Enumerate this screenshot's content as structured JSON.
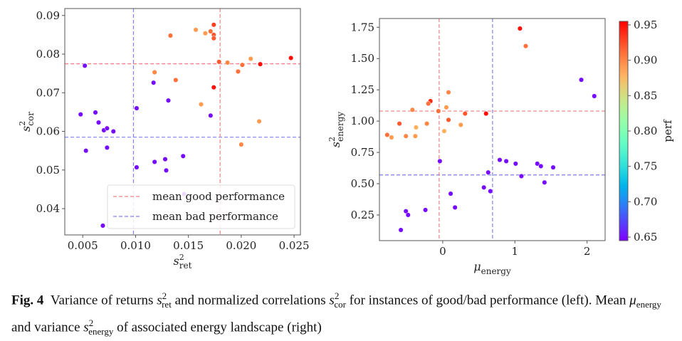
{
  "chart_data": [
    {
      "type": "scatter",
      "panel": "left",
      "xlabel": "s²ret",
      "xlabel_main": "s",
      "xlabel_sup": "2",
      "xlabel_sub": "ret",
      "ylabel_main": "s",
      "ylabel_sup": "2",
      "ylabel_sub": "cor",
      "xlim": [
        0.0033,
        0.0256
      ],
      "ylim": [
        0.0332,
        0.0918
      ],
      "xticks": [
        "0.005",
        "0.010",
        "0.015",
        "0.020",
        "0.025"
      ],
      "xtick_values": [
        0.005,
        0.01,
        0.015,
        0.02,
        0.025
      ],
      "yticks": [
        "0.04",
        "0.05",
        "0.06",
        "0.07",
        "0.08",
        "0.09"
      ],
      "ytick_values": [
        0.04,
        0.05,
        0.06,
        0.07,
        0.08,
        0.09
      ],
      "grid": false,
      "legend": {
        "placement": "lower-right",
        "entries": [
          {
            "label": "mean good performance",
            "color": "#f08080"
          },
          {
            "label": "mean bad performance",
            "color": "#8080f0"
          }
        ]
      },
      "mean_lines": {
        "good": {
          "x": 0.018,
          "y": 0.0775,
          "color": "#f08080"
        },
        "bad": {
          "x": 0.0098,
          "y": 0.0585,
          "color": "#8080f0"
        }
      },
      "points": [
        {
          "x": 0.0052,
          "y": 0.077,
          "perf": 0.65
        },
        {
          "x": 0.0048,
          "y": 0.0644,
          "perf": 0.65
        },
        {
          "x": 0.0062,
          "y": 0.0649,
          "perf": 0.65
        },
        {
          "x": 0.0065,
          "y": 0.0623,
          "perf": 0.65
        },
        {
          "x": 0.007,
          "y": 0.0603,
          "perf": 0.65
        },
        {
          "x": 0.0073,
          "y": 0.0608,
          "perf": 0.65
        },
        {
          "x": 0.0079,
          "y": 0.06,
          "perf": 0.65
        },
        {
          "x": 0.0053,
          "y": 0.055,
          "perf": 0.65
        },
        {
          "x": 0.0073,
          "y": 0.0558,
          "perf": 0.65
        },
        {
          "x": 0.0101,
          "y": 0.066,
          "perf": 0.65
        },
        {
          "x": 0.0117,
          "y": 0.0726,
          "perf": 0.65
        },
        {
          "x": 0.0131,
          "y": 0.068,
          "perf": 0.65
        },
        {
          "x": 0.0171,
          "y": 0.0641,
          "perf": 0.65
        },
        {
          "x": 0.0101,
          "y": 0.0507,
          "perf": 0.65
        },
        {
          "x": 0.0118,
          "y": 0.0521,
          "perf": 0.65
        },
        {
          "x": 0.0128,
          "y": 0.0528,
          "perf": 0.65
        },
        {
          "x": 0.0129,
          "y": 0.0499,
          "perf": 0.65
        },
        {
          "x": 0.0145,
          "y": 0.0536,
          "perf": 0.65
        },
        {
          "x": 0.0069,
          "y": 0.0356,
          "perf": 0.65
        },
        {
          "x": 0.0146,
          "y": 0.0438,
          "perf": 0.65
        },
        {
          "x": 0.0133,
          "y": 0.0848,
          "perf": 0.91
        },
        {
          "x": 0.0157,
          "y": 0.0863,
          "perf": 0.89
        },
        {
          "x": 0.0166,
          "y": 0.0854,
          "perf": 0.89
        },
        {
          "x": 0.0171,
          "y": 0.0859,
          "perf": 0.91
        },
        {
          "x": 0.0174,
          "y": 0.085,
          "perf": 0.92
        },
        {
          "x": 0.0174,
          "y": 0.0876,
          "perf": 0.93
        },
        {
          "x": 0.0174,
          "y": 0.0841,
          "perf": 0.92
        },
        {
          "x": 0.0118,
          "y": 0.0753,
          "perf": 0.9
        },
        {
          "x": 0.0138,
          "y": 0.0733,
          "perf": 0.91
        },
        {
          "x": 0.0174,
          "y": 0.0714,
          "perf": 0.95
        },
        {
          "x": 0.0162,
          "y": 0.067,
          "perf": 0.89
        },
        {
          "x": 0.0179,
          "y": 0.078,
          "perf": 0.92
        },
        {
          "x": 0.0187,
          "y": 0.0778,
          "perf": 0.9
        },
        {
          "x": 0.0197,
          "y": 0.0755,
          "perf": 0.91
        },
        {
          "x": 0.0201,
          "y": 0.0772,
          "perf": 0.91
        },
        {
          "x": 0.0209,
          "y": 0.0788,
          "perf": 0.89
        },
        {
          "x": 0.0218,
          "y": 0.0774,
          "perf": 0.95
        },
        {
          "x": 0.0247,
          "y": 0.079,
          "perf": 0.95
        },
        {
          "x": 0.0217,
          "y": 0.0626,
          "perf": 0.89
        },
        {
          "x": 0.02,
          "y": 0.0566,
          "perf": 0.9
        }
      ]
    },
    {
      "type": "scatter",
      "panel": "right",
      "xlabel_main": "μ",
      "xlabel_sub": "energy",
      "ylabel_main": "s",
      "ylabel_sup": "2",
      "ylabel_sub": "energy",
      "xlim": [
        -0.877,
        2.25
      ],
      "ylim": [
        0.045,
        1.82
      ],
      "xticks": [
        "0",
        "1",
        "2"
      ],
      "xtick_values": [
        0,
        1,
        2
      ],
      "yticks": [
        "0.25",
        "0.50",
        "0.75",
        "1.00",
        "1.25",
        "1.50",
        "1.75"
      ],
      "ytick_values": [
        0.25,
        0.5,
        0.75,
        1.0,
        1.25,
        1.5,
        1.75
      ],
      "grid": false,
      "mean_lines": {
        "good": {
          "x": -0.05,
          "y": 1.08,
          "color": "#f08080"
        },
        "bad": {
          "x": 0.69,
          "y": 0.57,
          "color": "#8080f0"
        }
      },
      "colorbar": {
        "label": "perf",
        "range": [
          0.645,
          0.955
        ],
        "ticks": [
          "0.65",
          "0.70",
          "0.75",
          "0.80",
          "0.85",
          "0.90",
          "0.95"
        ],
        "tick_values": [
          0.65,
          0.7,
          0.75,
          0.8,
          0.85,
          0.9,
          0.95
        ],
        "colormap": "rainbow"
      },
      "points": [
        {
          "x": 1.07,
          "y": 1.74,
          "perf": 0.95
        },
        {
          "x": 1.15,
          "y": 1.6,
          "perf": 0.91
        },
        {
          "x": 1.92,
          "y": 1.33,
          "perf": 0.65
        },
        {
          "x": 2.1,
          "y": 1.2,
          "perf": 0.65
        },
        {
          "x": 0.08,
          "y": 1.23,
          "perf": 0.9
        },
        {
          "x": -0.17,
          "y": 1.16,
          "perf": 0.94
        },
        {
          "x": -0.2,
          "y": 1.14,
          "perf": 0.91
        },
        {
          "x": -0.42,
          "y": 1.09,
          "perf": 0.9
        },
        {
          "x": -0.06,
          "y": 1.08,
          "perf": 0.91
        },
        {
          "x": 0.05,
          "y": 1.11,
          "perf": 0.89
        },
        {
          "x": 0.31,
          "y": 1.06,
          "perf": 0.92
        },
        {
          "x": 0.6,
          "y": 1.06,
          "perf": 0.95
        },
        {
          "x": 0.08,
          "y": 1.01,
          "perf": 0.92
        },
        {
          "x": -0.6,
          "y": 0.98,
          "perf": 0.92
        },
        {
          "x": -0.22,
          "y": 0.98,
          "perf": 0.9
        },
        {
          "x": -0.37,
          "y": 0.95,
          "perf": 0.88
        },
        {
          "x": 0.25,
          "y": 0.97,
          "perf": 0.89
        },
        {
          "x": 0.02,
          "y": 0.92,
          "perf": 0.88
        },
        {
          "x": -0.77,
          "y": 0.89,
          "perf": 0.91
        },
        {
          "x": -0.71,
          "y": 0.87,
          "perf": 0.89
        },
        {
          "x": -0.51,
          "y": 0.88,
          "perf": 0.9
        },
        {
          "x": -0.38,
          "y": 0.88,
          "perf": 0.89
        },
        {
          "x": -0.04,
          "y": 0.68,
          "perf": 0.65
        },
        {
          "x": 0.79,
          "y": 0.69,
          "perf": 0.65
        },
        {
          "x": 0.88,
          "y": 0.68,
          "perf": 0.65
        },
        {
          "x": 1.01,
          "y": 0.66,
          "perf": 0.65
        },
        {
          "x": 1.31,
          "y": 0.66,
          "perf": 0.65
        },
        {
          "x": 1.36,
          "y": 0.64,
          "perf": 0.65
        },
        {
          "x": 1.53,
          "y": 0.63,
          "perf": 0.65
        },
        {
          "x": 0.63,
          "y": 0.59,
          "perf": 0.65
        },
        {
          "x": 1.09,
          "y": 0.56,
          "perf": 0.65
        },
        {
          "x": 1.41,
          "y": 0.51,
          "perf": 0.65
        },
        {
          "x": 0.57,
          "y": 0.47,
          "perf": 0.65
        },
        {
          "x": 0.66,
          "y": 0.44,
          "perf": 0.65
        },
        {
          "x": 0.11,
          "y": 0.42,
          "perf": 0.65
        },
        {
          "x": 0.17,
          "y": 0.31,
          "perf": 0.65
        },
        {
          "x": -0.24,
          "y": 0.29,
          "perf": 0.65
        },
        {
          "x": -0.51,
          "y": 0.28,
          "perf": 0.65
        },
        {
          "x": -0.48,
          "y": 0.25,
          "perf": 0.65
        },
        {
          "x": -0.58,
          "y": 0.13,
          "perf": 0.65
        }
      ]
    }
  ],
  "caption": {
    "fig": "Fig. 4",
    "t1": "Variance of returns ",
    "s": "s",
    "sup2": "2",
    "ret": "ret",
    "t2": " and normalized correlations ",
    "cor": "cor",
    "t3": " for instances of good/bad performance (left). Mean ",
    "mu": "μ",
    "energy": "energy",
    "t4": " and variance ",
    "t5": " of associated energy landscape (right)"
  }
}
